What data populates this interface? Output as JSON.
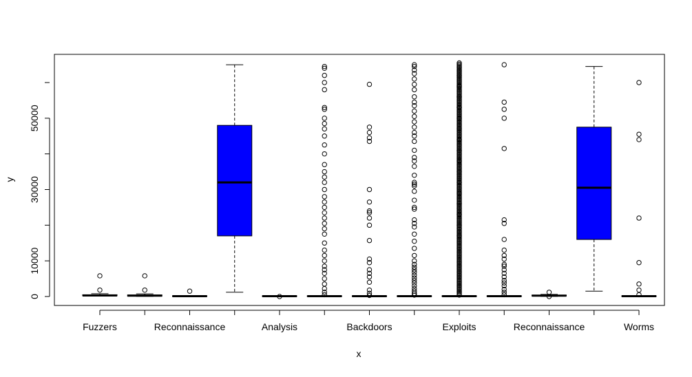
{
  "chart_data": {
    "type": "boxplot",
    "xlabel": "x",
    "ylabel": "y",
    "ylim": [
      -2000,
      65500
    ],
    "y_ticks": [
      "0",
      "10000",
      "30000",
      "50000"
    ],
    "y_tick_values": [
      0,
      10000,
      30000,
      50000
    ],
    "x_tick_labels_shown": [
      "Fuzzers",
      "Reconnaissance",
      "Analysis",
      "Backdoors",
      "Exploits",
      "Reconnaissance",
      "Worms"
    ],
    "x_tick_label_positions": [
      1,
      3,
      5,
      7,
      9,
      11,
      13
    ],
    "box_fill": "#0000ff",
    "point_style": "open-circle",
    "boxes": [
      {
        "position": 1,
        "q1": 200,
        "median": 300,
        "q3": 500,
        "whisker_low": 100,
        "whisker_high": 800,
        "box_filled": false,
        "outliers": [
          1800,
          5800
        ]
      },
      {
        "position": 2,
        "q1": 100,
        "median": 250,
        "q3": 450,
        "whisker_low": 50,
        "whisker_high": 750,
        "box_filled": false,
        "outliers": [
          1800,
          5800
        ]
      },
      {
        "position": 3,
        "q1": 50,
        "median": 100,
        "q3": 200,
        "whisker_low": 0,
        "whisker_high": 300,
        "box_filled": false,
        "outliers": [
          1500
        ]
      },
      {
        "position": 4,
        "q1": 17000,
        "median": 32000,
        "q3": 48000,
        "whisker_low": 1200,
        "whisker_high": 65000,
        "box_filled": true,
        "outliers": []
      },
      {
        "position": 5,
        "q1": 50,
        "median": 100,
        "q3": 200,
        "whisker_low": 0,
        "whisker_high": 300,
        "box_filled": false,
        "outliers": [
          0
        ]
      },
      {
        "position": 6,
        "q1": 50,
        "median": 100,
        "q3": 200,
        "whisker_low": 0,
        "whisker_high": 300,
        "box_filled": false,
        "outliers": [
          500,
          1200,
          2200,
          3500,
          5000,
          6500,
          7500,
          8500,
          10000,
          11500,
          13000,
          15000,
          17500,
          19000,
          20500,
          22000,
          23500,
          25000,
          26500,
          28000,
          30000,
          32000,
          33500,
          35000,
          37000,
          40000,
          42500,
          45000,
          47000,
          48500,
          50000,
          52500,
          53000,
          58000,
          60000,
          62000,
          64000,
          64500
        ]
      },
      {
        "position": 7,
        "q1": 50,
        "median": 100,
        "q3": 200,
        "whisker_low": 0,
        "whisker_high": 300,
        "box_filled": false,
        "outliers": [
          300,
          900,
          1800,
          4000,
          5500,
          6500,
          7500,
          9500,
          10500,
          15700,
          20000,
          22000,
          23500,
          24000,
          26500,
          30000,
          43500,
          44500,
          46000,
          47500,
          59500
        ]
      },
      {
        "position": 8,
        "q1": 50,
        "median": 100,
        "q3": 200,
        "whisker_low": 0,
        "whisker_high": 300,
        "box_filled": false,
        "outliers": [
          400,
          900,
          1500,
          2200,
          3000,
          3800,
          4500,
          5200,
          6000,
          6800,
          7500,
          8200,
          9000,
          10000,
          11500,
          13500,
          15500,
          17500,
          19500,
          20500,
          21500,
          24500,
          25000,
          27000,
          29500,
          31000,
          31500,
          32000,
          34000,
          36500,
          38000,
          39000,
          41000,
          43500,
          45000,
          46000,
          47500,
          49000,
          50500,
          52000,
          53500,
          54500,
          56000,
          58000,
          59500,
          61000,
          62500,
          63500,
          64500,
          65000
        ]
      },
      {
        "position": 9,
        "q1": 50,
        "median": 100,
        "q3": 200,
        "whisker_low": 0,
        "whisker_high": 300,
        "box_filled": false,
        "outliers_dense_range": [
          400,
          65500
        ],
        "outliers": [
          17000,
          20000,
          23000,
          26000,
          29000,
          32000,
          35000,
          38000,
          41000,
          44000,
          47000,
          50000,
          53000,
          56000,
          59000,
          62000
        ]
      },
      {
        "position": 10,
        "q1": 50,
        "median": 100,
        "q3": 200,
        "whisker_low": 0,
        "whisker_high": 300,
        "box_filled": false,
        "outliers": [
          500,
          1200,
          2000,
          3000,
          3800,
          4500,
          5500,
          6500,
          7500,
          8500,
          9000,
          10500,
          11500,
          13000,
          16000,
          20500,
          21500,
          41500,
          50000,
          52500,
          54500,
          65000
        ]
      },
      {
        "position": 11,
        "q1": 150,
        "median": 250,
        "q3": 400,
        "whisker_low": 50,
        "whisker_high": 600,
        "box_filled": false,
        "outliers": [
          0,
          1200
        ]
      },
      {
        "position": 12,
        "q1": 16000,
        "median": 30500,
        "q3": 47500,
        "whisker_low": 1500,
        "whisker_high": 64500,
        "box_filled": true,
        "outliers": []
      },
      {
        "position": 13,
        "q1": 50,
        "median": 100,
        "q3": 200,
        "whisker_low": 0,
        "whisker_high": 300,
        "box_filled": false,
        "outliers": [
          500,
          1800,
          3500,
          9500,
          22000,
          44000,
          45500,
          60000
        ]
      }
    ]
  }
}
